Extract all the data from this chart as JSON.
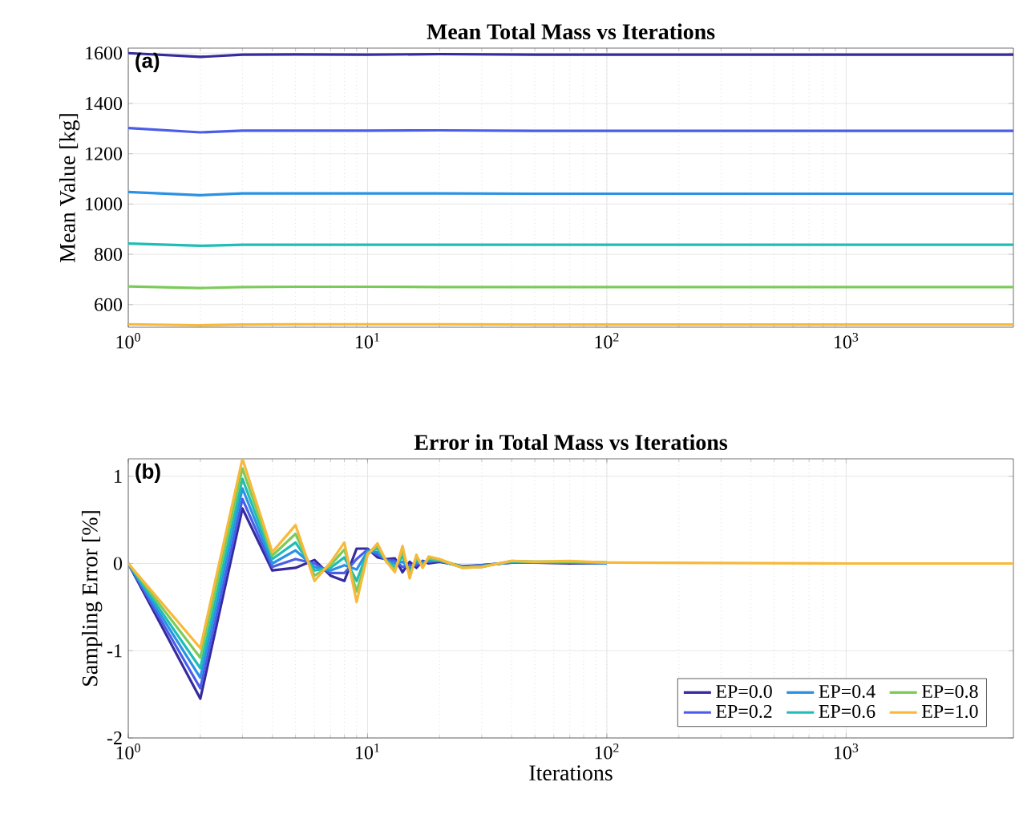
{
  "chart_data": [
    {
      "type": "line",
      "title": "Mean Total Mass vs Iterations",
      "ylabel": "Mean Value [kg]",
      "annotations": [
        "(a)"
      ],
      "log": "x",
      "grid": true,
      "legend": false,
      "x": [
        1,
        2,
        3,
        5,
        10,
        20,
        50,
        100,
        1000,
        5000
      ],
      "xlim": [
        1,
        5000
      ],
      "ylim": [
        510,
        1620
      ],
      "xticks": [
        {
          "value": 1,
          "label": "10$^{0}$"
        },
        {
          "value": 10,
          "label": "10$^{1}$"
        },
        {
          "value": 100,
          "label": "10$^{2}$"
        },
        {
          "value": 1000,
          "label": "10$^{3}$"
        }
      ],
      "yticks": [
        600,
        800,
        1000,
        1200,
        1400,
        1600
      ],
      "series": [
        {
          "color": "#352a9e",
          "values": [
            1600,
            1585,
            1594,
            1595,
            1594,
            1596,
            1594,
            1594,
            1594,
            1594
          ]
        },
        {
          "color": "#4a5ce8",
          "values": [
            1302,
            1285,
            1292,
            1292,
            1292,
            1293,
            1291,
            1291,
            1291,
            1291
          ]
        },
        {
          "color": "#2a91e4",
          "values": [
            1048,
            1035,
            1042,
            1042,
            1042,
            1042,
            1041,
            1041,
            1041,
            1041
          ]
        },
        {
          "color": "#1fbdb5",
          "values": [
            843,
            834,
            838,
            838,
            838,
            838,
            838,
            838,
            838,
            838
          ]
        },
        {
          "color": "#7ccb5a",
          "values": [
            672,
            666,
            670,
            671,
            671,
            670,
            670,
            670,
            670,
            670
          ]
        },
        {
          "color": "#f8b83a",
          "values": [
            522,
            518,
            521,
            522,
            522,
            522,
            521,
            521,
            521,
            521
          ]
        }
      ]
    },
    {
      "type": "line",
      "title": "Error in Total Mass vs Iterations",
      "xlabel": "Iterations",
      "ylabel": "Sampling Error [%]",
      "annotations": [
        "(b)"
      ],
      "log": "x",
      "grid": true,
      "legend": "bottom right",
      "x": [
        1,
        2,
        3,
        4,
        5,
        6,
        7,
        8,
        9,
        10,
        11,
        12,
        13,
        14,
        15,
        16,
        17,
        18,
        20,
        25,
        30,
        40,
        50,
        70,
        100,
        1000,
        5000
      ],
      "xlim": [
        1,
        5000
      ],
      "ylim": [
        -2,
        1.2
      ],
      "xticks": [
        {
          "value": 1,
          "label": "10$^{0}$"
        },
        {
          "value": 10,
          "label": "10$^{1}$"
        },
        {
          "value": 100,
          "label": "10$^{2}$"
        },
        {
          "value": 1000,
          "label": "10$^{3}$"
        }
      ],
      "yticks": [
        -2,
        -1,
        0,
        1
      ],
      "series": [
        {
          "name": "EP=0.0",
          "color": "#352a9e",
          "values": [
            0,
            -1.55,
            0.63,
            -0.08,
            -0.05,
            0.04,
            -0.14,
            -0.2,
            0.17,
            0.17,
            0.07,
            0.05,
            0.06,
            -0.1,
            0.02,
            -0.05,
            0.03,
            0,
            0.02,
            -0.03,
            -0.02,
            0.01,
            0.01,
            0,
            0,
            null,
            null
          ]
        },
        {
          "name": "EP=0.2",
          "color": "#4a5ce8",
          "values": [
            0,
            -1.43,
            0.74,
            -0.04,
            0.05,
            0.0,
            -0.11,
            -0.11,
            0.05,
            0.16,
            0.1,
            0.04,
            0.03,
            -0.04,
            -0.02,
            -0.02,
            0.02,
            0.02,
            0.03,
            -0.04,
            -0.02,
            0.01,
            0.01,
            0.01,
            0,
            null,
            null
          ]
        },
        {
          "name": "EP=0.4",
          "color": "#2a91e4",
          "values": [
            0,
            -1.31,
            0.86,
            0.0,
            0.15,
            -0.04,
            -0.08,
            -0.02,
            -0.07,
            0.14,
            0.13,
            0.03,
            0.0,
            0.02,
            -0.06,
            0.01,
            0.01,
            0.03,
            0.03,
            -0.04,
            -0.03,
            0.02,
            0.01,
            0.01,
            0,
            null,
            null
          ]
        },
        {
          "name": "EP=0.6",
          "color": "#1fbdb5",
          "values": [
            0,
            -1.2,
            0.97,
            0.05,
            0.24,
            -0.08,
            -0.05,
            0.07,
            -0.2,
            0.13,
            0.17,
            0.03,
            -0.04,
            0.08,
            -0.1,
            0.04,
            -0.01,
            0.05,
            0.04,
            -0.04,
            -0.03,
            0.02,
            0.02,
            0.02,
            0.01,
            null,
            null
          ]
        },
        {
          "name": "EP=0.8",
          "color": "#7ccb5a",
          "values": [
            0,
            -1.08,
            1.09,
            0.09,
            0.34,
            -0.14,
            -0.02,
            0.16,
            -0.32,
            0.11,
            0.2,
            0.02,
            -0.07,
            0.14,
            -0.13,
            0.07,
            -0.03,
            0.06,
            0.04,
            -0.05,
            -0.04,
            0.03,
            0.02,
            0.02,
            0.01,
            null,
            null
          ]
        },
        {
          "name": "EP=1.0",
          "color": "#f8b83a",
          "values": [
            0,
            -0.97,
            1.2,
            0.13,
            0.44,
            -0.2,
            0.01,
            0.24,
            -0.44,
            0.1,
            0.23,
            0.02,
            -0.1,
            0.2,
            -0.17,
            0.1,
            -0.05,
            0.08,
            0.05,
            -0.05,
            -0.04,
            0.03,
            0.02,
            0.03,
            0.01,
            0,
            0
          ]
        }
      ]
    }
  ]
}
